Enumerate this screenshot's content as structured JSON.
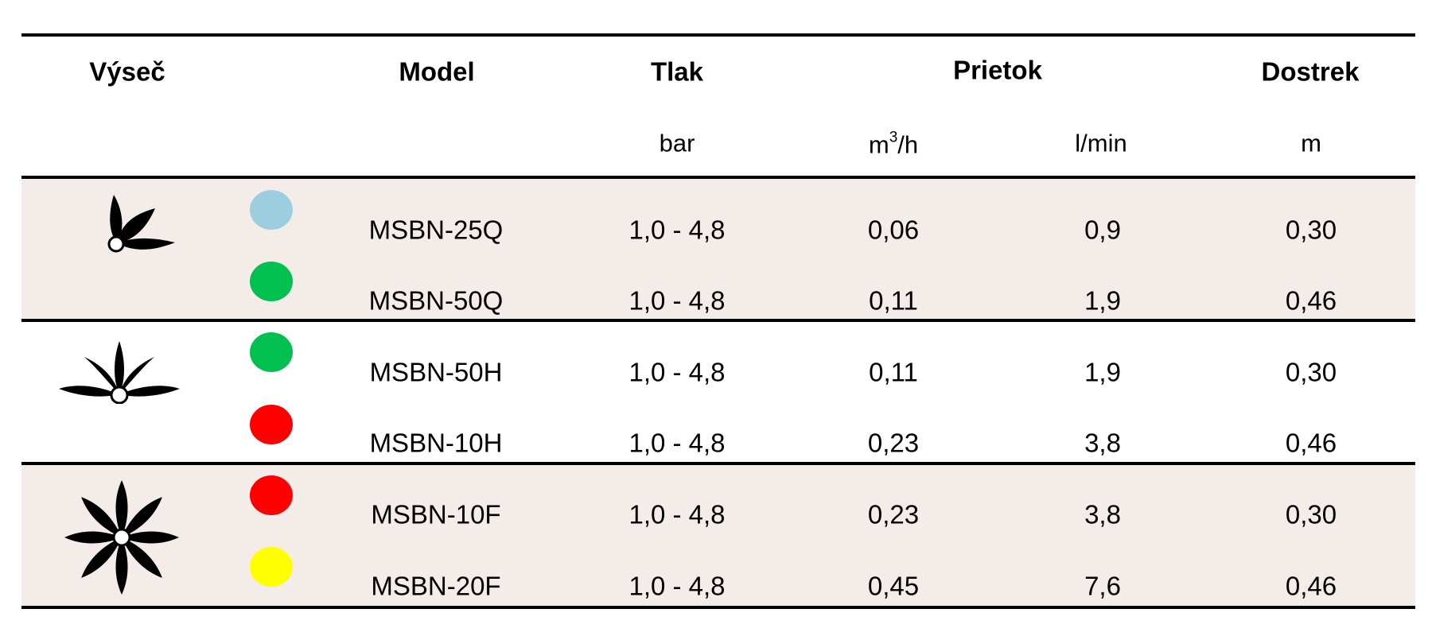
{
  "headers": {
    "sector": "Výseč",
    "model": "Model",
    "pressure": "Tlak",
    "flow": "Prietok",
    "range": "Dostrek"
  },
  "units": {
    "pressure": "bar",
    "flow_m3h_base": "m",
    "flow_m3h_sup": "3",
    "flow_m3h_tail": "/h",
    "flow_lmin": "l/min",
    "range": "m"
  },
  "groups": [
    {
      "sector_icon": "quarter-circle-spray-icon",
      "rows": [
        {
          "color": "#9ccee0",
          "model": "MSBN-25Q",
          "pressure": "1,0 - 4,8",
          "flow_m3h": "0,06",
          "flow_lmin": "0,9",
          "range": "0,30"
        },
        {
          "color": "#00c050",
          "model": "MSBN-50Q",
          "pressure": "1,0 - 4,8",
          "flow_m3h": "0,11",
          "flow_lmin": "1,9",
          "range": "0,46"
        }
      ]
    },
    {
      "sector_icon": "half-circle-spray-icon",
      "rows": [
        {
          "color": "#00c050",
          "model": "MSBN-50H",
          "pressure": "1,0 - 4,8",
          "flow_m3h": "0,11",
          "flow_lmin": "1,9",
          "range": "0,30"
        },
        {
          "color": "#ff0000",
          "model": "MSBN-10H",
          "pressure": "1,0 - 4,8",
          "flow_m3h": "0,23",
          "flow_lmin": "3,8",
          "range": "0,46"
        }
      ]
    },
    {
      "sector_icon": "full-circle-spray-icon",
      "rows": [
        {
          "color": "#ff0000",
          "model": "MSBN-10F",
          "pressure": "1,0 - 4,8",
          "flow_m3h": "0,23",
          "flow_lmin": "3,8",
          "range": "0,30"
        },
        {
          "color": "#ffff00",
          "model": "MSBN-20F",
          "pressure": "1,0 - 4,8",
          "flow_m3h": "0,45",
          "flow_lmin": "7,6",
          "range": "0,46"
        }
      ]
    }
  ]
}
